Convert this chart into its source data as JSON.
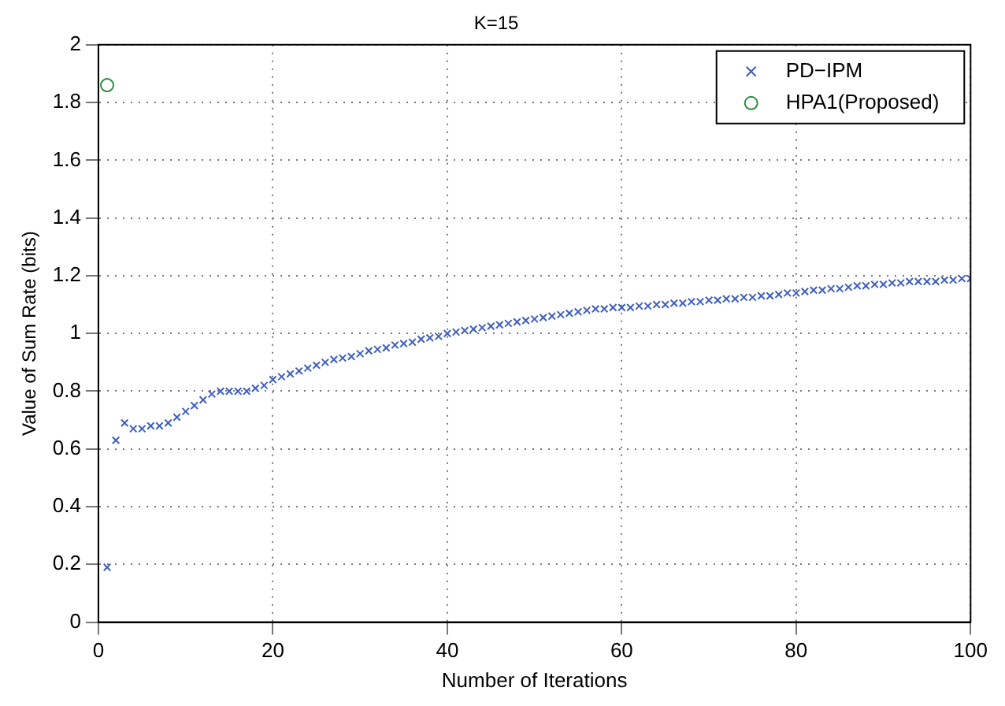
{
  "chart_data": {
    "type": "scatter",
    "title": "K=15",
    "xlabel": "Number of Iterations",
    "ylabel": "Value of Sum Rate (bits)",
    "xlim": [
      0,
      100
    ],
    "xticks": [
      0,
      20,
      40,
      60,
      80,
      100
    ],
    "ylim": [
      0,
      2
    ],
    "yticks": [
      0,
      0.2,
      0.4,
      0.6,
      0.8,
      1,
      1.2,
      1.4,
      1.6,
      1.8,
      2
    ],
    "grid": true,
    "legend": "top right",
    "series": [
      {
        "name": "PD−IPM",
        "color": "#3f5fbf",
        "marker": "cross",
        "x": [
          1,
          2,
          3,
          4,
          5,
          6,
          7,
          8,
          9,
          10,
          11,
          12,
          13,
          14,
          15,
          16,
          17,
          18,
          19,
          20,
          21,
          22,
          23,
          24,
          25,
          26,
          27,
          28,
          29,
          30,
          31,
          32,
          33,
          34,
          35,
          36,
          37,
          38,
          39,
          40,
          41,
          42,
          43,
          44,
          45,
          46,
          47,
          48,
          49,
          50,
          51,
          52,
          53,
          54,
          55,
          56,
          57,
          58,
          59,
          60,
          61,
          62,
          63,
          64,
          65,
          66,
          67,
          68,
          69,
          70,
          71,
          72,
          73,
          74,
          75,
          76,
          77,
          78,
          79,
          80,
          81,
          82,
          83,
          84,
          85,
          86,
          87,
          88,
          89,
          90,
          91,
          92,
          93,
          94,
          95,
          96,
          97,
          98,
          99,
          100
        ],
        "values": [
          0.19,
          0.63,
          0.69,
          0.67,
          0.67,
          0.68,
          0.68,
          0.69,
          0.71,
          0.73,
          0.75,
          0.77,
          0.79,
          0.8,
          0.8,
          0.8,
          0.8,
          0.81,
          0.82,
          0.84,
          0.85,
          0.86,
          0.87,
          0.88,
          0.89,
          0.9,
          0.91,
          0.915,
          0.92,
          0.93,
          0.94,
          0.945,
          0.95,
          0.96,
          0.965,
          0.97,
          0.98,
          0.985,
          0.99,
          1.0,
          1.005,
          1.01,
          1.015,
          1.02,
          1.025,
          1.03,
          1.035,
          1.04,
          1.045,
          1.05,
          1.055,
          1.06,
          1.065,
          1.07,
          1.075,
          1.08,
          1.085,
          1.085,
          1.09,
          1.09,
          1.09,
          1.095,
          1.095,
          1.1,
          1.1,
          1.105,
          1.105,
          1.11,
          1.11,
          1.115,
          1.115,
          1.12,
          1.12,
          1.125,
          1.125,
          1.13,
          1.13,
          1.135,
          1.14,
          1.14,
          1.145,
          1.15,
          1.15,
          1.155,
          1.155,
          1.16,
          1.165,
          1.165,
          1.17,
          1.17,
          1.175,
          1.175,
          1.18,
          1.18,
          1.18,
          1.18,
          1.185,
          1.185,
          1.19,
          1.19
        ]
      },
      {
        "name": "HPA1(Proposed)",
        "color": "#2e8b3f",
        "marker": "circle",
        "x": [
          1
        ],
        "values": [
          1.86
        ]
      }
    ]
  }
}
